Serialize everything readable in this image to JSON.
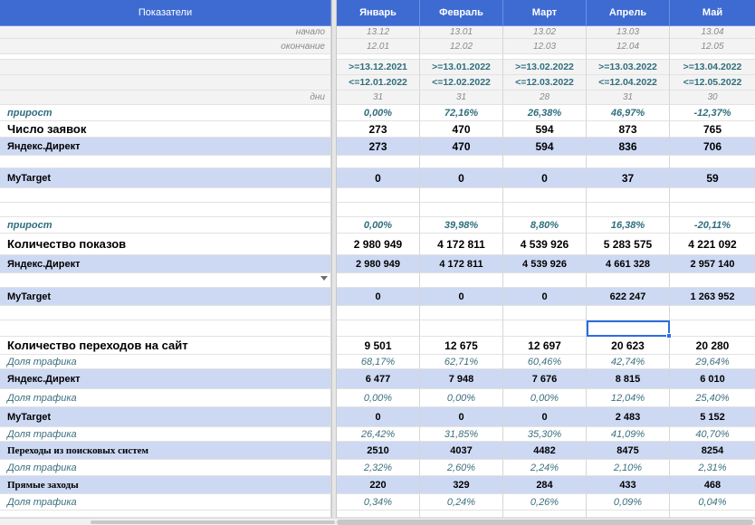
{
  "header": {
    "indicator_label": "Показатели",
    "months": [
      "Январь",
      "Февраль",
      "Март",
      "Апрель",
      "Май"
    ]
  },
  "dates": {
    "start_label": "начало",
    "end_label": "окончание",
    "start": [
      "13.12",
      "13.01",
      "13.02",
      "13.03",
      "13.04"
    ],
    "end": [
      "12.01",
      "12.02",
      "12.03",
      "12.04",
      "12.05"
    ]
  },
  "ranges": {
    "from": [
      ">=13.12.2021",
      ">=13.01.2022",
      ">=13.02.2022",
      ">=13.03.2022",
      ">=13.04.2022"
    ],
    "to": [
      "<=12.01.2022",
      "<=12.02.2022",
      "<=12.03.2022",
      "<=12.04.2022",
      "<=12.05.2022"
    ]
  },
  "days": {
    "label": "дни",
    "values": [
      "31",
      "31",
      "28",
      "31",
      "30"
    ]
  },
  "leads": {
    "growth_label": "прирост",
    "growth": [
      "0,00%",
      "72,16%",
      "26,38%",
      "46,97%",
      "-12,37%"
    ],
    "total_label": "Число заявок",
    "total": [
      "273",
      "470",
      "594",
      "873",
      "765"
    ],
    "yandex_label": "Яндекс.Директ",
    "yandex": [
      "273",
      "470",
      "594",
      "836",
      "706"
    ],
    "mytarget_label": "MyTarget",
    "mytarget": [
      "0",
      "0",
      "0",
      "37",
      "59"
    ]
  },
  "impressions": {
    "growth_label": "прирост",
    "growth": [
      "0,00%",
      "39,98%",
      "8,80%",
      "16,38%",
      "-20,11%"
    ],
    "total_label": "Количество показов",
    "total": [
      "2 980 949",
      "4 172 811",
      "4 539 926",
      "5 283 575",
      "4 221 092"
    ],
    "yandex_label": "Яндекс.Директ",
    "yandex": [
      "2 980 949",
      "4 172 811",
      "4 539 926",
      "4 661 328",
      "2 957 140"
    ],
    "mytarget_label": "MyTarget",
    "mytarget": [
      "0",
      "0",
      "0",
      "622 247",
      "1 263 952"
    ]
  },
  "visits": {
    "total_label": "Количество переходов на сайт",
    "total": [
      "9 501",
      "12 675",
      "12 697",
      "20 623",
      "20 280"
    ],
    "share_label": "Доля трафика",
    "total_share": [
      "68,17%",
      "62,71%",
      "60,46%",
      "42,74%",
      "29,64%"
    ],
    "yandex_label": "Яндекс.Директ",
    "yandex": [
      "6 477",
      "7 948",
      "7 676",
      "8 815",
      "6 010"
    ],
    "yandex_share": [
      "0,00%",
      "0,00%",
      "0,00%",
      "12,04%",
      "25,40%"
    ],
    "mytarget_label": "MyTarget",
    "mytarget": [
      "0",
      "0",
      "0",
      "2 483",
      "5 152"
    ],
    "mytarget_share": [
      "26,42%",
      "31,85%",
      "35,30%",
      "41,09%",
      "40,70%"
    ],
    "search_label": "Переходы из поисковых систем",
    "search": [
      "2510",
      "4037",
      "4482",
      "8475",
      "8254"
    ],
    "search_share": [
      "2,32%",
      "2,60%",
      "2,24%",
      "2,10%",
      "2,31%"
    ],
    "direct_label": "Прямые заходы",
    "direct": [
      "220",
      "329",
      "284",
      "433",
      "468"
    ],
    "direct_share": [
      "0,34%",
      "0,24%",
      "0,26%",
      "0,09%",
      "0,04%"
    ]
  },
  "colors": {
    "header_bg": "#3e6bd1",
    "highlight_row": "#cdd9f3",
    "teal_text": "#2f6e7e",
    "selection": "#2a6ee0"
  }
}
